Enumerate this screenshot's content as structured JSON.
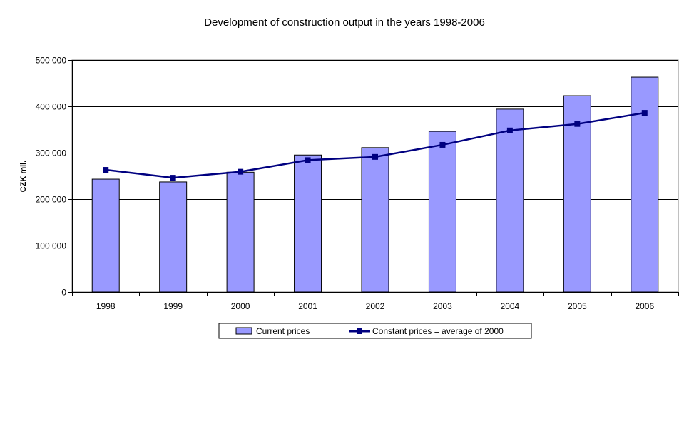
{
  "chart_data": {
    "type": "bar",
    "title": "Development of construction output in the years 1998-2006",
    "xlabel": "",
    "ylabel": "CZK mil.",
    "categories": [
      "1998",
      "1999",
      "2000",
      "2001",
      "2002",
      "2003",
      "2004",
      "2005",
      "2006"
    ],
    "ylim": [
      0,
      500000
    ],
    "yticks": [
      0,
      100000,
      200000,
      300000,
      400000,
      500000
    ],
    "ytick_labels": [
      "0",
      "100 000",
      "200 000",
      "300 000",
      "400 000",
      "500 000"
    ],
    "grid": "horizontal",
    "legend_position": "bottom",
    "series": [
      {
        "name": "Current prices",
        "kind": "bar",
        "color": "#9999ff",
        "values": [
          243000,
          237000,
          258000,
          295000,
          311000,
          346000,
          394000,
          423000,
          463000
        ]
      },
      {
        "name": "Constant prices = average of 2000",
        "kind": "line",
        "color": "#000080",
        "values": [
          263000,
          246000,
          259000,
          284000,
          291000,
          317000,
          348000,
          362000,
          386000
        ]
      }
    ]
  }
}
